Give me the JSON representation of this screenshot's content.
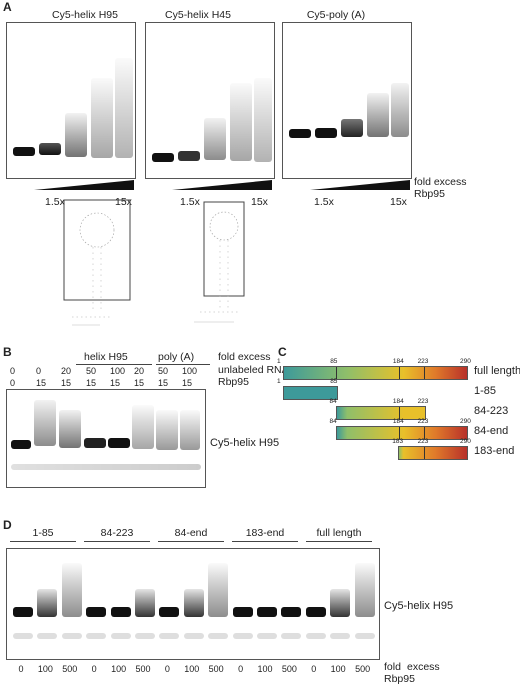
{
  "panelA": {
    "letter": "A",
    "gels": [
      {
        "title": "Cy5-helix H95",
        "low": "1.5x",
        "high": "15x"
      },
      {
        "title": "Cy5-helix H45",
        "low": "1.5x",
        "high": "15x"
      },
      {
        "title": "Cy5-poly (A)",
        "low": "1.5x",
        "high": "15x"
      }
    ],
    "legend_line1": "fold excess",
    "legend_line2": "Rbp95"
  },
  "panelB": {
    "letter": "B",
    "group1": "helix H95",
    "group2": "poly (A)",
    "row1_label": "fold excess",
    "row2_label": "unlabeled RNA",
    "row3_label": "Rbp95",
    "lanes": [
      {
        "top": "0",
        "bottom": "0"
      },
      {
        "top": "0",
        "bottom": "15"
      },
      {
        "top": "20",
        "bottom": "15"
      },
      {
        "top": "50",
        "bottom": "15"
      },
      {
        "top": "100",
        "bottom": "15"
      },
      {
        "top": "20",
        "bottom": "15"
      },
      {
        "top": "50",
        "bottom": "15"
      },
      {
        "top": "100",
        "bottom": "15"
      }
    ],
    "band_label": "Cy5-helix H95"
  },
  "panelC": {
    "letter": "C",
    "constructs": [
      {
        "label": "full length",
        "ticks": [
          "1",
          "85",
          "184",
          "223",
          "290"
        ]
      },
      {
        "label": "1-85",
        "ticks": [
          "1",
          "85"
        ]
      },
      {
        "label": "84-223",
        "ticks": [
          "84",
          "184",
          "223"
        ]
      },
      {
        "label": "84-end",
        "ticks": [
          "84",
          "184",
          "223",
          "290"
        ]
      },
      {
        "label": "183-end",
        "ticks": [
          "183",
          "223",
          "290"
        ]
      }
    ]
  },
  "panelD": {
    "letter": "D",
    "groups": [
      "1-85",
      "84-223",
      "84-end",
      "183-end",
      "full length"
    ],
    "lane_values": [
      "0",
      "100",
      "500",
      "0",
      "100",
      "500",
      "0",
      "100",
      "500",
      "0",
      "100",
      "500",
      "0",
      "100",
      "500"
    ],
    "band_label": "Cy5-helix H95",
    "legend_line1": "fold",
    "legend_line2": "excess",
    "legend_line3": "Rbp95"
  }
}
